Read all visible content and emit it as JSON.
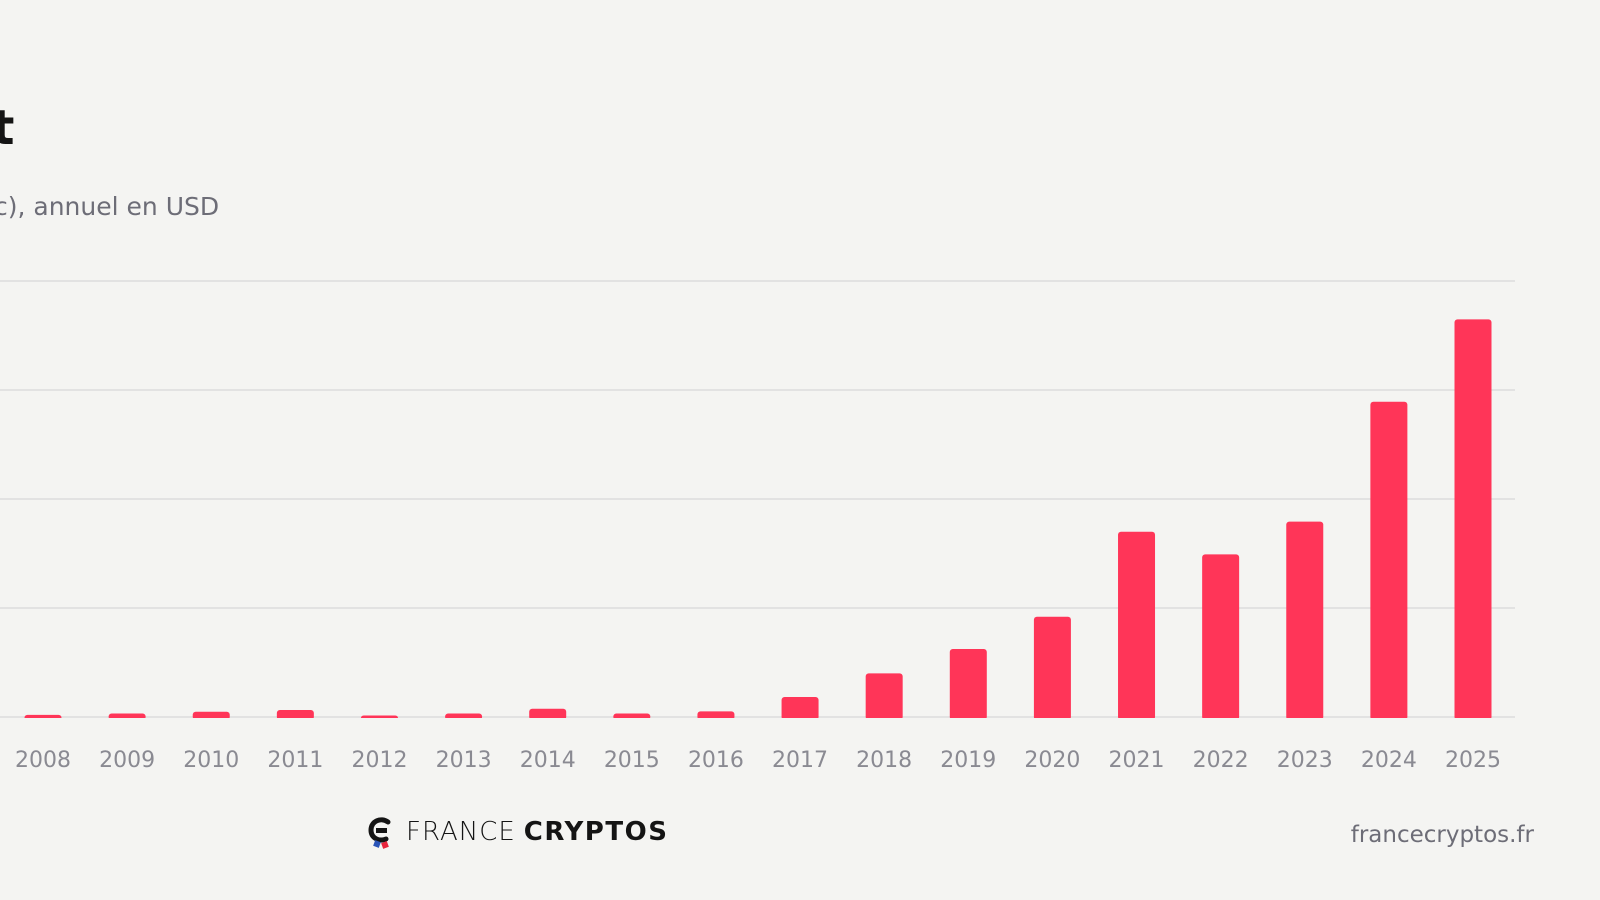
{
  "header": {
    "title": "et",
    "subtitle": "c), annuel en USD"
  },
  "brand": {
    "word1": "FRANCE",
    "word2": "CRYPTOS",
    "site": "francecryptos.fr"
  },
  "colors": {
    "bar": "#ff3558",
    "grid": "#dcdcdc",
    "background": "#f4f4f2",
    "text_muted": "#6d6d77"
  },
  "chart_data": {
    "type": "bar",
    "categories": [
      "2008",
      "2009",
      "2010",
      "2011",
      "2012",
      "2013",
      "2014",
      "2015",
      "2016",
      "2017",
      "2018",
      "2019",
      "2020",
      "2021",
      "2022",
      "2023",
      "2024",
      "2025"
    ],
    "series": [
      {
        "values": [
          0.5,
          0.8,
          1.2,
          1.6,
          0.2,
          0.8,
          1.9,
          0.8,
          1.3,
          4.6,
          10.0,
          15.6,
          23.0,
          42.5,
          37.3,
          44.8,
          72.3,
          91.2
        ]
      }
    ],
    "ylim": [
      0,
      100
    ],
    "gridlines": 4,
    "grid": true,
    "legend": "none"
  }
}
